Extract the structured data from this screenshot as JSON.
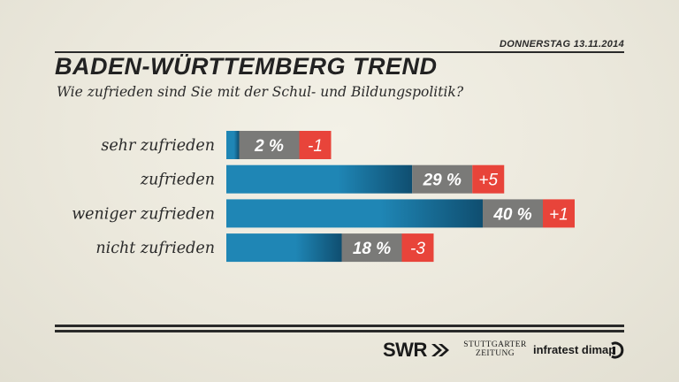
{
  "header": {
    "date": "DONNERSTAG  13.11.2014",
    "title": "BADEN-WÜRTTEMBERG TREND",
    "subtitle": "Wie zufrieden sind Sie mit der Schul- und Bildungspolitik?"
  },
  "chart_data": {
    "type": "bar",
    "orientation": "horizontal",
    "categories": [
      "sehr zufrieden",
      "zufrieden",
      "weniger zufrieden",
      "nicht zufrieden"
    ],
    "values": [
      2,
      29,
      40,
      18
    ],
    "value_labels": [
      "2 %",
      "29 %",
      "40 %",
      "18 %"
    ],
    "changes": [
      -1,
      5,
      1,
      -3
    ],
    "change_labels": [
      "-1",
      "+5",
      "+1",
      "-3"
    ],
    "unit": "%",
    "xlim": [
      0,
      100
    ],
    "colors": {
      "bar": "#1f86b5",
      "bar_dark": "#0f4e70",
      "value_box": "#7a7a78",
      "change_box": "#e8443a"
    }
  },
  "footer": {
    "logos": {
      "swr": "SWR",
      "stuttgarter_line1": "STUTTGARTER",
      "stuttgarter_line2": "ZEITUNG",
      "infratest": "infratest dimap"
    }
  }
}
